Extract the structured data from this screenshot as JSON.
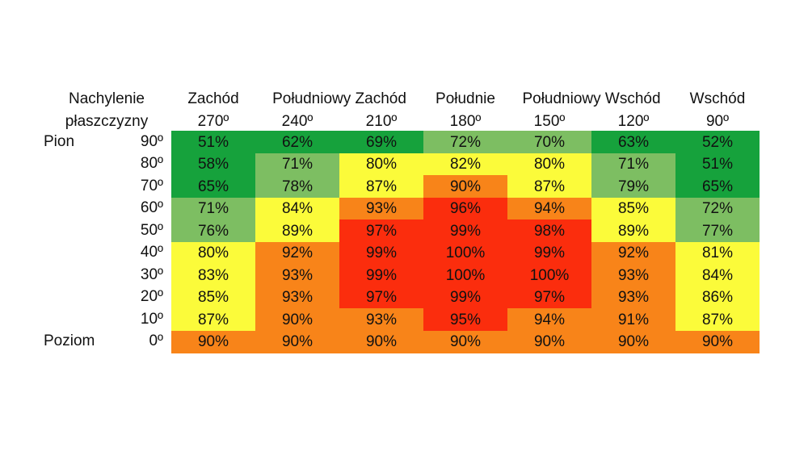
{
  "chart_data": {
    "type": "heatmap",
    "row_header": [
      "Nachylenie",
      "płaszczyzny"
    ],
    "direction_headers": [
      {
        "label": "Zachód",
        "center_col": 0
      },
      {
        "label": "Południowy Zachód",
        "center_col": 1.5
      },
      {
        "label": "Południe",
        "center_col": 3
      },
      {
        "label": "Południowy Wschód",
        "center_col": 4.5
      },
      {
        "label": "Wschód",
        "center_col": 6
      }
    ],
    "columns": [
      "270º",
      "240º",
      "210º",
      "180º",
      "150º",
      "120º",
      "90º"
    ],
    "rows": [
      "90º",
      "80º",
      "70º",
      "60º",
      "50º",
      "40º",
      "30º",
      "20º",
      "10º",
      "0º"
    ],
    "row_groups": [
      {
        "label": "Pion",
        "row": 0
      },
      {
        "label": "Poziom",
        "row": 9
      }
    ],
    "values": [
      [
        51,
        62,
        69,
        72,
        70,
        63,
        52
      ],
      [
        58,
        71,
        80,
        82,
        80,
        71,
        51
      ],
      [
        65,
        78,
        87,
        90,
        87,
        79,
        65
      ],
      [
        71,
        84,
        93,
        96,
        94,
        85,
        72
      ],
      [
        76,
        89,
        97,
        99,
        98,
        89,
        77
      ],
      [
        80,
        92,
        99,
        100,
        99,
        92,
        81
      ],
      [
        83,
        93,
        99,
        100,
        100,
        93,
        84
      ],
      [
        85,
        93,
        97,
        99,
        97,
        93,
        86
      ],
      [
        87,
        90,
        93,
        95,
        94,
        91,
        87
      ],
      [
        90,
        90,
        90,
        90,
        90,
        90,
        90
      ]
    ],
    "value_suffix": "%",
    "colors": {
      "dark_green": "#16a23c",
      "light_green": "#7dbe62",
      "yellow": "#fbfb3a",
      "orange": "#f88419",
      "red": "#fb2d0d"
    },
    "color_map": [
      [
        "dark_green",
        "dark_green",
        "dark_green",
        "light_green",
        "light_green",
        "dark_green",
        "dark_green"
      ],
      [
        "dark_green",
        "light_green",
        "yellow",
        "yellow",
        "yellow",
        "light_green",
        "dark_green"
      ],
      [
        "dark_green",
        "light_green",
        "yellow",
        "orange",
        "yellow",
        "light_green",
        "dark_green"
      ],
      [
        "light_green",
        "yellow",
        "orange",
        "red",
        "orange",
        "yellow",
        "light_green"
      ],
      [
        "light_green",
        "yellow",
        "red",
        "red",
        "red",
        "yellow",
        "light_green"
      ],
      [
        "yellow",
        "orange",
        "red",
        "red",
        "red",
        "orange",
        "yellow"
      ],
      [
        "yellow",
        "orange",
        "red",
        "red",
        "red",
        "orange",
        "yellow"
      ],
      [
        "yellow",
        "orange",
        "red",
        "red",
        "red",
        "orange",
        "yellow"
      ],
      [
        "yellow",
        "orange",
        "orange",
        "red",
        "orange",
        "orange",
        "yellow"
      ],
      [
        "orange",
        "orange",
        "orange",
        "orange",
        "orange",
        "orange",
        "orange"
      ]
    ]
  }
}
